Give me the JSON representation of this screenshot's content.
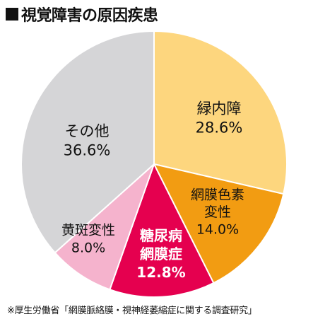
{
  "title": "視覚障害の原因疾患",
  "source": "※厚生労働省「網膜脈絡膜・視神経萎縮症に関する調査研究」",
  "chart_data": {
    "type": "pie",
    "start_angle_deg": 0,
    "direction": "clockwise",
    "slices": [
      {
        "label_lines": [
          "緑内障"
        ],
        "value": 28.6,
        "value_label": "28.6%",
        "color": "#fdd67e",
        "text_color": "#111111",
        "bold": false
      },
      {
        "label_lines": [
          "網膜色素",
          "変性"
        ],
        "value": 14.0,
        "value_label": "14.0%",
        "color": "#f29c12",
        "text_color": "#111111",
        "bold": false
      },
      {
        "label_lines": [
          "糖尿病",
          "網膜症"
        ],
        "value": 12.8,
        "value_label": "12.8%",
        "color": "#e5004f",
        "text_color": "#ffffff",
        "bold": true
      },
      {
        "label_lines": [
          "黄斑変性"
        ],
        "value": 8.0,
        "value_label": "8.0%",
        "color": "#f5b3cd",
        "text_color": "#111111",
        "bold": false
      },
      {
        "label_lines": [
          "その他"
        ],
        "value": 36.6,
        "value_label": "36.6%",
        "color": "#d5d5d7",
        "text_color": "#111111",
        "bold": false
      }
    ]
  }
}
